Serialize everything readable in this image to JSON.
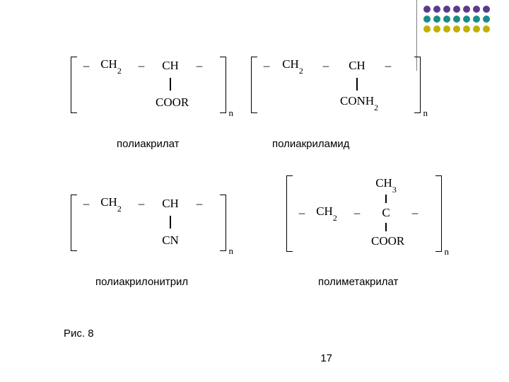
{
  "decor": {
    "dot_colors": [
      "#5b3a8c",
      "#5b3a8c",
      "#5b3a8c",
      "#5b3a8c",
      "#5b3a8c",
      "#5b3a8c",
      "#5b3a8c",
      "#188c86",
      "#188c86",
      "#188c86",
      "#188c86",
      "#188c86",
      "#188c86",
      "#188c86",
      "#c2b000",
      "#c2b000",
      "#c2b000",
      "#c2b000",
      "#c2b000",
      "#c2b000",
      "#c2b000"
    ]
  },
  "structures": {
    "s1": {
      "label": "полиакрилат",
      "backbone_left": "CH",
      "backbone_left_sub": "2",
      "backbone_right": "CH",
      "pendant": "COOR",
      "n": "n"
    },
    "s2": {
      "label": "полиакриламид",
      "backbone_left": "CH",
      "backbone_left_sub": "2",
      "backbone_right": "CH",
      "pendant": "CONH",
      "pendant_sub": "2",
      "n": "n"
    },
    "s3": {
      "label": "полиакрилонитрил",
      "backbone_left": "CH",
      "backbone_left_sub": "2",
      "backbone_right": "CH",
      "pendant": "CN",
      "n": "n"
    },
    "s4": {
      "label": "полиметакрилат",
      "top": "CH",
      "top_sub": "3",
      "backbone_left": "CH",
      "backbone_left_sub": "2",
      "backbone_right": "C",
      "pendant": "COOR",
      "n": "n"
    }
  },
  "figure_caption": "Рис. 8",
  "page_number": "17",
  "glyphs": {
    "dash": "–"
  }
}
